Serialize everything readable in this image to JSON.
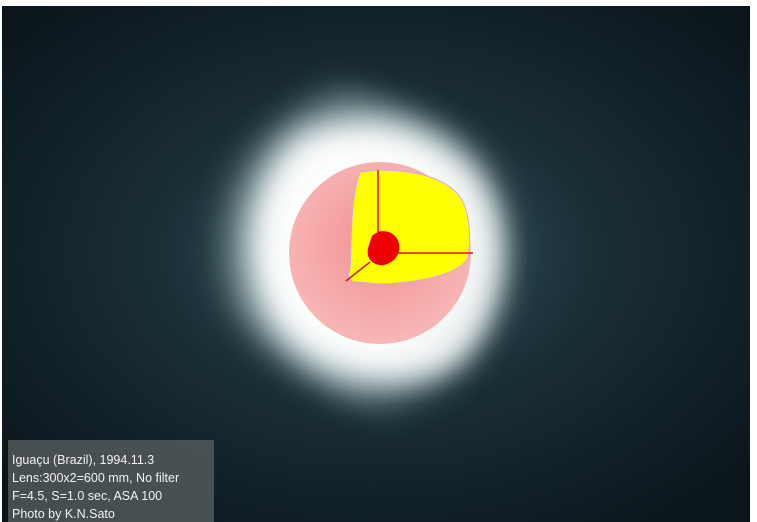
{
  "caption": {
    "lines": [
      "Iguaçu (Brazil),  1994.11.3",
      "Lens:300x2=600 mm, No filter",
      "F=4.5, S=1.0 sec, ASA 100",
      "Photo by K.N.Sato"
    ]
  }
}
